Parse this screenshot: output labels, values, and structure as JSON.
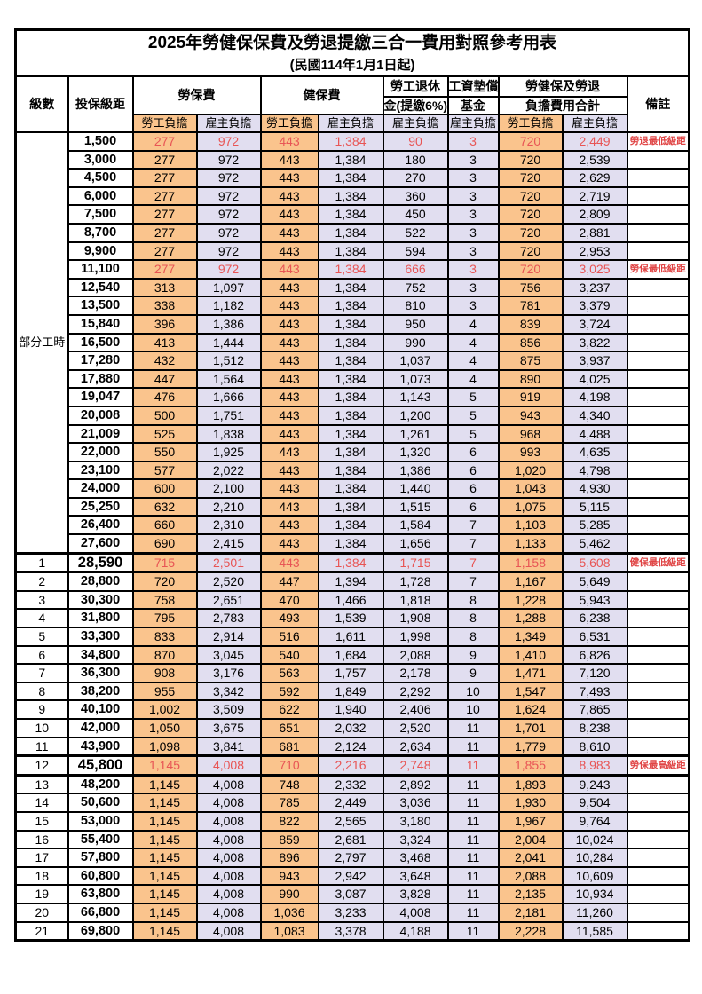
{
  "title": "2025年勞健保保費及勞退提繳三合一費用對照參考用表",
  "subtitle": "(民國114年1月1日起)",
  "colors": {
    "employee_col_bg": "#FAC48D",
    "employer_col_bg": "#E1DEF0",
    "highlight_number_text": "#E85555",
    "remark_text": "#E04444",
    "border": "#000000"
  },
  "header": {
    "level": "級數",
    "bracket": "投保級距",
    "labor_insurance": "勞保費",
    "health_insurance": "健保費",
    "pension_line1": "勞工退休",
    "pension_line2": "金(提繳6%)",
    "wage_fund_line1": "工資墊償",
    "wage_fund_line2": "基金",
    "total_line1": "勞健保及勞退",
    "total_line2": "負擔費用合計",
    "remark": "備註",
    "employee_share": "勞工負擔",
    "employer_share": "雇主負擔"
  },
  "part_time_label": "部分工時",
  "rows": [
    {
      "section": "part",
      "level": "",
      "bracket": "1,500",
      "values": [
        "277",
        "972",
        "443",
        "1,384",
        "90",
        "3",
        "720",
        "2,449"
      ],
      "remark": "勞退最低級距",
      "highlight": true,
      "key": false
    },
    {
      "section": "part",
      "level": "",
      "bracket": "3,000",
      "values": [
        "277",
        "972",
        "443",
        "1,384",
        "180",
        "3",
        "720",
        "2,539"
      ],
      "remark": "",
      "highlight": false,
      "key": false
    },
    {
      "section": "part",
      "level": "",
      "bracket": "4,500",
      "values": [
        "277",
        "972",
        "443",
        "1,384",
        "270",
        "3",
        "720",
        "2,629"
      ],
      "remark": "",
      "highlight": false,
      "key": false
    },
    {
      "section": "part",
      "level": "",
      "bracket": "6,000",
      "values": [
        "277",
        "972",
        "443",
        "1,384",
        "360",
        "3",
        "720",
        "2,719"
      ],
      "remark": "",
      "highlight": false,
      "key": false
    },
    {
      "section": "part",
      "level": "",
      "bracket": "7,500",
      "values": [
        "277",
        "972",
        "443",
        "1,384",
        "450",
        "3",
        "720",
        "2,809"
      ],
      "remark": "",
      "highlight": false,
      "key": false
    },
    {
      "section": "part",
      "level": "",
      "bracket": "8,700",
      "values": [
        "277",
        "972",
        "443",
        "1,384",
        "522",
        "3",
        "720",
        "2,881"
      ],
      "remark": "",
      "highlight": false,
      "key": false
    },
    {
      "section": "part",
      "level": "",
      "bracket": "9,900",
      "values": [
        "277",
        "972",
        "443",
        "1,384",
        "594",
        "3",
        "720",
        "2,953"
      ],
      "remark": "",
      "highlight": false,
      "key": false
    },
    {
      "section": "part",
      "level": "",
      "bracket": "11,100",
      "values": [
        "277",
        "972",
        "443",
        "1,384",
        "666",
        "3",
        "720",
        "3,025"
      ],
      "remark": "勞保最低級距",
      "highlight": true,
      "key": false
    },
    {
      "section": "part",
      "level": "",
      "bracket": "12,540",
      "values": [
        "313",
        "1,097",
        "443",
        "1,384",
        "752",
        "3",
        "756",
        "3,237"
      ],
      "remark": "",
      "highlight": false,
      "key": false
    },
    {
      "section": "part",
      "level": "",
      "bracket": "13,500",
      "values": [
        "338",
        "1,182",
        "443",
        "1,384",
        "810",
        "3",
        "781",
        "3,379"
      ],
      "remark": "",
      "highlight": false,
      "key": false
    },
    {
      "section": "part",
      "level": "",
      "bracket": "15,840",
      "values": [
        "396",
        "1,386",
        "443",
        "1,384",
        "950",
        "4",
        "839",
        "3,724"
      ],
      "remark": "",
      "highlight": false,
      "key": false
    },
    {
      "section": "part",
      "level": "",
      "bracket": "16,500",
      "values": [
        "413",
        "1,444",
        "443",
        "1,384",
        "990",
        "4",
        "856",
        "3,822"
      ],
      "remark": "",
      "highlight": false,
      "key": false
    },
    {
      "section": "part",
      "level": "",
      "bracket": "17,280",
      "values": [
        "432",
        "1,512",
        "443",
        "1,384",
        "1,037",
        "4",
        "875",
        "3,937"
      ],
      "remark": "",
      "highlight": false,
      "key": false
    },
    {
      "section": "part",
      "level": "",
      "bracket": "17,880",
      "values": [
        "447",
        "1,564",
        "443",
        "1,384",
        "1,073",
        "4",
        "890",
        "4,025"
      ],
      "remark": "",
      "highlight": false,
      "key": false
    },
    {
      "section": "part",
      "level": "",
      "bracket": "19,047",
      "values": [
        "476",
        "1,666",
        "443",
        "1,384",
        "1,143",
        "5",
        "919",
        "4,198"
      ],
      "remark": "",
      "highlight": false,
      "key": false
    },
    {
      "section": "part",
      "level": "",
      "bracket": "20,008",
      "values": [
        "500",
        "1,751",
        "443",
        "1,384",
        "1,200",
        "5",
        "943",
        "4,340"
      ],
      "remark": "",
      "highlight": false,
      "key": false
    },
    {
      "section": "part",
      "level": "",
      "bracket": "21,009",
      "values": [
        "525",
        "1,838",
        "443",
        "1,384",
        "1,261",
        "5",
        "968",
        "4,488"
      ],
      "remark": "",
      "highlight": false,
      "key": false
    },
    {
      "section": "part",
      "level": "",
      "bracket": "22,000",
      "values": [
        "550",
        "1,925",
        "443",
        "1,384",
        "1,320",
        "6",
        "993",
        "4,635"
      ],
      "remark": "",
      "highlight": false,
      "key": false
    },
    {
      "section": "part",
      "level": "",
      "bracket": "23,100",
      "values": [
        "577",
        "2,022",
        "443",
        "1,384",
        "1,386",
        "6",
        "1,020",
        "4,798"
      ],
      "remark": "",
      "highlight": false,
      "key": false
    },
    {
      "section": "part",
      "level": "",
      "bracket": "24,000",
      "values": [
        "600",
        "2,100",
        "443",
        "1,384",
        "1,440",
        "6",
        "1,043",
        "4,930"
      ],
      "remark": "",
      "highlight": false,
      "key": false
    },
    {
      "section": "part",
      "level": "",
      "bracket": "25,250",
      "values": [
        "632",
        "2,210",
        "443",
        "1,384",
        "1,515",
        "6",
        "1,075",
        "5,115"
      ],
      "remark": "",
      "highlight": false,
      "key": false
    },
    {
      "section": "part",
      "level": "",
      "bracket": "26,400",
      "values": [
        "660",
        "2,310",
        "443",
        "1,384",
        "1,584",
        "7",
        "1,103",
        "5,285"
      ],
      "remark": "",
      "highlight": false,
      "key": false
    },
    {
      "section": "part",
      "level": "",
      "bracket": "27,600",
      "values": [
        "690",
        "2,415",
        "443",
        "1,384",
        "1,656",
        "7",
        "1,133",
        "5,462"
      ],
      "remark": "",
      "highlight": false,
      "key": false
    },
    {
      "section": "level",
      "level": "1",
      "bracket": "28,590",
      "values": [
        "715",
        "2,501",
        "443",
        "1,384",
        "1,715",
        "7",
        "1,158",
        "5,608"
      ],
      "remark": "健保最低級距",
      "highlight": true,
      "key": true
    },
    {
      "section": "level",
      "level": "2",
      "bracket": "28,800",
      "values": [
        "720",
        "2,520",
        "447",
        "1,394",
        "1,728",
        "7",
        "1,167",
        "5,649"
      ],
      "remark": "",
      "highlight": false,
      "key": false
    },
    {
      "section": "level",
      "level": "3",
      "bracket": "30,300",
      "values": [
        "758",
        "2,651",
        "470",
        "1,466",
        "1,818",
        "8",
        "1,228",
        "5,943"
      ],
      "remark": "",
      "highlight": false,
      "key": false
    },
    {
      "section": "level",
      "level": "4",
      "bracket": "31,800",
      "values": [
        "795",
        "2,783",
        "493",
        "1,539",
        "1,908",
        "8",
        "1,288",
        "6,238"
      ],
      "remark": "",
      "highlight": false,
      "key": false
    },
    {
      "section": "level",
      "level": "5",
      "bracket": "33,300",
      "values": [
        "833",
        "2,914",
        "516",
        "1,611",
        "1,998",
        "8",
        "1,349",
        "6,531"
      ],
      "remark": "",
      "highlight": false,
      "key": false
    },
    {
      "section": "level",
      "level": "6",
      "bracket": "34,800",
      "values": [
        "870",
        "3,045",
        "540",
        "1,684",
        "2,088",
        "9",
        "1,410",
        "6,826"
      ],
      "remark": "",
      "highlight": false,
      "key": false
    },
    {
      "section": "level",
      "level": "7",
      "bracket": "36,300",
      "values": [
        "908",
        "3,176",
        "563",
        "1,757",
        "2,178",
        "9",
        "1,471",
        "7,120"
      ],
      "remark": "",
      "highlight": false,
      "key": false
    },
    {
      "section": "level",
      "level": "8",
      "bracket": "38,200",
      "values": [
        "955",
        "3,342",
        "592",
        "1,849",
        "2,292",
        "10",
        "1,547",
        "7,493"
      ],
      "remark": "",
      "highlight": false,
      "key": false
    },
    {
      "section": "level",
      "level": "9",
      "bracket": "40,100",
      "values": [
        "1,002",
        "3,509",
        "622",
        "1,940",
        "2,406",
        "10",
        "1,624",
        "7,865"
      ],
      "remark": "",
      "highlight": false,
      "key": false
    },
    {
      "section": "level",
      "level": "10",
      "bracket": "42,000",
      "values": [
        "1,050",
        "3,675",
        "651",
        "2,032",
        "2,520",
        "11",
        "1,701",
        "8,238"
      ],
      "remark": "",
      "highlight": false,
      "key": false
    },
    {
      "section": "level",
      "level": "11",
      "bracket": "43,900",
      "values": [
        "1,098",
        "3,841",
        "681",
        "2,124",
        "2,634",
        "11",
        "1,779",
        "8,610"
      ],
      "remark": "",
      "highlight": false,
      "key": false
    },
    {
      "section": "level",
      "level": "12",
      "bracket": "45,800",
      "values": [
        "1,145",
        "4,008",
        "710",
        "2,216",
        "2,748",
        "11",
        "1,855",
        "8,983"
      ],
      "remark": "勞保最高級距",
      "highlight": true,
      "key": true
    },
    {
      "section": "level",
      "level": "13",
      "bracket": "48,200",
      "values": [
        "1,145",
        "4,008",
        "748",
        "2,332",
        "2,892",
        "11",
        "1,893",
        "9,243"
      ],
      "remark": "",
      "highlight": false,
      "key": false
    },
    {
      "section": "level",
      "level": "14",
      "bracket": "50,600",
      "values": [
        "1,145",
        "4,008",
        "785",
        "2,449",
        "3,036",
        "11",
        "1,930",
        "9,504"
      ],
      "remark": "",
      "highlight": false,
      "key": false
    },
    {
      "section": "level",
      "level": "15",
      "bracket": "53,000",
      "values": [
        "1,145",
        "4,008",
        "822",
        "2,565",
        "3,180",
        "11",
        "1,967",
        "9,764"
      ],
      "remark": "",
      "highlight": false,
      "key": false
    },
    {
      "section": "level",
      "level": "16",
      "bracket": "55,400",
      "values": [
        "1,145",
        "4,008",
        "859",
        "2,681",
        "3,324",
        "11",
        "2,004",
        "10,024"
      ],
      "remark": "",
      "highlight": false,
      "key": false
    },
    {
      "section": "level",
      "level": "17",
      "bracket": "57,800",
      "values": [
        "1,145",
        "4,008",
        "896",
        "2,797",
        "3,468",
        "11",
        "2,041",
        "10,284"
      ],
      "remark": "",
      "highlight": false,
      "key": false
    },
    {
      "section": "level",
      "level": "18",
      "bracket": "60,800",
      "values": [
        "1,145",
        "4,008",
        "943",
        "2,942",
        "3,648",
        "11",
        "2,088",
        "10,609"
      ],
      "remark": "",
      "highlight": false,
      "key": false
    },
    {
      "section": "level",
      "level": "19",
      "bracket": "63,800",
      "values": [
        "1,145",
        "4,008",
        "990",
        "3,087",
        "3,828",
        "11",
        "2,135",
        "10,934"
      ],
      "remark": "",
      "highlight": false,
      "key": false
    },
    {
      "section": "level",
      "level": "20",
      "bracket": "66,800",
      "values": [
        "1,145",
        "4,008",
        "1,036",
        "3,233",
        "4,008",
        "11",
        "2,181",
        "11,260"
      ],
      "remark": "",
      "highlight": false,
      "key": false
    },
    {
      "section": "level",
      "level": "21",
      "bracket": "69,800",
      "values": [
        "1,145",
        "4,008",
        "1,083",
        "3,378",
        "4,188",
        "11",
        "2,228",
        "11,585"
      ],
      "remark": "",
      "highlight": false,
      "key": false
    }
  ]
}
